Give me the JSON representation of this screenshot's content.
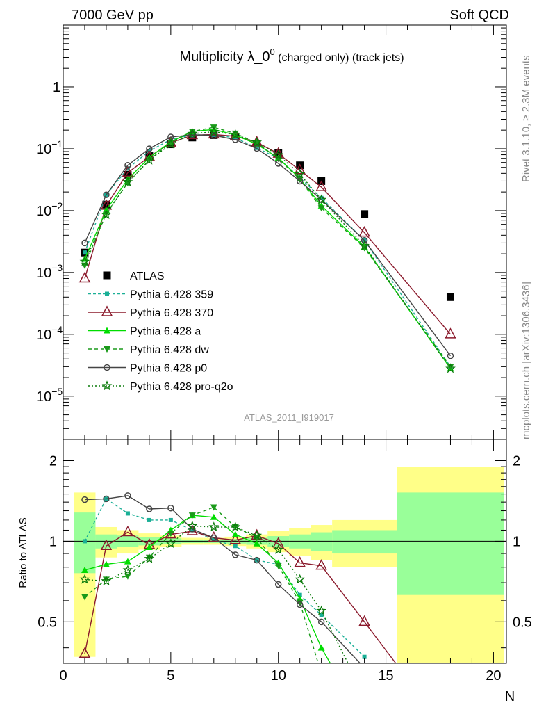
{
  "header": {
    "left": "7000 GeV pp",
    "right": "Soft QCD"
  },
  "side": {
    "rivet": "Rivet 3.1.10, ≥ 2.3M events",
    "mcplots": "mcplots.cern.ch [arXiv:1306.3436]"
  },
  "chart_data": [
    {
      "type": "scatter",
      "title": "Multiplicity λ_0⁰ (charged only) (track jets)",
      "title_main": "Multiplicity λ_0",
      "title_sup": "0",
      "title_paren": " (charged only) (track jets)",
      "watermark": "ATLAS_2011_I919017",
      "yscale": "log",
      "xlim": [
        0,
        20.6
      ],
      "ylim": [
        2e-06,
        10
      ],
      "ytick_labels": [
        {
          "value": 1,
          "base": "1",
          "exp": ""
        },
        {
          "value": 0.1,
          "base": "10",
          "exp": "−1"
        },
        {
          "value": 0.01,
          "base": "10",
          "exp": "−2"
        },
        {
          "value": 0.001,
          "base": "10",
          "exp": "−3"
        },
        {
          "value": 0.0001,
          "base": "10",
          "exp": "−4"
        },
        {
          "value": 1e-05,
          "base": "10",
          "exp": "−5"
        }
      ],
      "legend_position": "bottom-left",
      "series": [
        {
          "name": "ATLAS",
          "style": "data",
          "color": "#000000",
          "marker": "square",
          "dash": "",
          "x": [
            1,
            2,
            3,
            4,
            5,
            6,
            7,
            8,
            9,
            10,
            11,
            12,
            14,
            18
          ],
          "y": [
            0.0021,
            0.0125,
            0.038,
            0.076,
            0.118,
            0.152,
            0.166,
            0.157,
            0.121,
            0.085,
            0.054,
            0.03,
            0.0088,
            0.0004
          ]
        },
        {
          "name": "Pythia 6.428 359",
          "color": "#1aaf96",
          "marker": "smallsquare",
          "dash": "4,3",
          "x": [
            1,
            2,
            3,
            4,
            5,
            6,
            7,
            8,
            9,
            10,
            11,
            12,
            14,
            18
          ],
          "y": [
            0.0021,
            0.018,
            0.048,
            0.092,
            0.141,
            0.168,
            0.168,
            0.15,
            0.103,
            0.07,
            0.034,
            0.016,
            0.0033,
            3e-05
          ]
        },
        {
          "name": "Pythia 6.428 370",
          "color": "#8b1a2c",
          "marker": "triangle-open",
          "dash": "",
          "x": [
            1,
            2,
            3,
            4,
            5,
            6,
            7,
            8,
            9,
            10,
            11,
            12,
            14,
            18
          ],
          "y": [
            0.0008,
            0.012,
            0.041,
            0.074,
            0.125,
            0.166,
            0.17,
            0.159,
            0.127,
            0.083,
            0.045,
            0.024,
            0.0044,
            0.0001
          ]
        },
        {
          "name": "Pythia 6.428 a",
          "color": "#00dd00",
          "marker": "triangle",
          "dash": "",
          "x": [
            1,
            2,
            3,
            4,
            5,
            6,
            7,
            8,
            9,
            10,
            11,
            12,
            14,
            18
          ],
          "y": [
            0.00165,
            0.0102,
            0.032,
            0.072,
            0.13,
            0.19,
            0.205,
            0.167,
            0.118,
            0.071,
            0.033,
            0.012,
            0.0026,
            2.8e-05
          ]
        },
        {
          "name": "Pythia 6.428 dw",
          "color": "#1a9a1a",
          "marker": "triangle-down",
          "dash": "5,4",
          "x": [
            1,
            2,
            3,
            4,
            5,
            6,
            7,
            8,
            9,
            10,
            11,
            12,
            14,
            18
          ],
          "y": [
            0.0013,
            0.009,
            0.028,
            0.066,
            0.126,
            0.19,
            0.222,
            0.177,
            0.125,
            0.069,
            0.032,
            0.011,
            0.0025,
            3e-05
          ]
        },
        {
          "name": "Pythia 6.428 p0",
          "color": "#444444",
          "marker": "circle-open",
          "dash": "",
          "x": [
            1,
            2,
            3,
            4,
            5,
            6,
            7,
            8,
            9,
            10,
            11,
            12,
            14,
            18
          ],
          "y": [
            0.003,
            0.018,
            0.054,
            0.1,
            0.155,
            0.168,
            0.165,
            0.14,
            0.101,
            0.058,
            0.03,
            0.015,
            0.0033,
            4.5e-05
          ]
        },
        {
          "name": "Pythia 6.428 pro-q2o",
          "color": "#0a7a0a",
          "marker": "star",
          "dash": "2,3",
          "x": [
            1,
            2,
            3,
            4,
            5,
            6,
            7,
            8,
            9,
            10,
            11,
            12,
            14,
            18
          ],
          "y": [
            0.0015,
            0.0086,
            0.029,
            0.065,
            0.119,
            0.175,
            0.188,
            0.17,
            0.127,
            0.079,
            0.039,
            0.015,
            0.0027,
            2.8e-05
          ]
        }
      ]
    },
    {
      "type": "scatter",
      "ylabel": "Ratio to ATLAS",
      "xlabel": "N",
      "yscale": "log",
      "xlim": [
        0,
        20.6
      ],
      "ylim": [
        0.35,
        2.4
      ],
      "yticks": [
        0.5,
        1,
        2
      ],
      "xticks": [
        0,
        5,
        10,
        15,
        20
      ],
      "reference_line": 1,
      "bands": [
        {
          "x0": 0.5,
          "x1": 1.5,
          "yellow": [
            0.37,
            1.52
          ],
          "green": [
            0.76,
            1.28
          ]
        },
        {
          "x0": 1.5,
          "x1": 2.5,
          "yellow": [
            0.87,
            1.13
          ],
          "green": [
            0.94,
            1.06
          ]
        },
        {
          "x0": 2.5,
          "x1": 3.5,
          "yellow": [
            0.9,
            1.1
          ],
          "green": [
            0.95,
            1.05
          ]
        },
        {
          "x0": 3.5,
          "x1": 4.5,
          "yellow": [
            0.93,
            1.07
          ],
          "green": [
            0.965,
            1.035
          ]
        },
        {
          "x0": 4.5,
          "x1": 5.5,
          "yellow": [
            0.95,
            1.05
          ],
          "green": [
            0.975,
            1.025
          ]
        },
        {
          "x0": 5.5,
          "x1": 6.5,
          "yellow": [
            0.97,
            1.03
          ],
          "green": [
            0.985,
            1.015
          ]
        },
        {
          "x0": 6.5,
          "x1": 7.5,
          "yellow": [
            0.97,
            1.03
          ],
          "green": [
            0.985,
            1.015
          ]
        },
        {
          "x0": 7.5,
          "x1": 8.5,
          "yellow": [
            0.96,
            1.04
          ],
          "green": [
            0.98,
            1.02
          ]
        },
        {
          "x0": 8.5,
          "x1": 9.5,
          "yellow": [
            0.94,
            1.06
          ],
          "green": [
            0.97,
            1.03
          ]
        },
        {
          "x0": 9.5,
          "x1": 10.5,
          "yellow": [
            0.91,
            1.09
          ],
          "green": [
            0.955,
            1.045
          ]
        },
        {
          "x0": 10.5,
          "x1": 11.5,
          "yellow": [
            0.88,
            1.12
          ],
          "green": [
            0.94,
            1.06
          ]
        },
        {
          "x0": 11.5,
          "x1": 12.5,
          "yellow": [
            0.85,
            1.15
          ],
          "green": [
            0.92,
            1.08
          ]
        },
        {
          "x0": 12.5,
          "x1": 15.5,
          "yellow": [
            0.8,
            1.2
          ],
          "green": [
            0.9,
            1.1
          ]
        },
        {
          "x0": 15.5,
          "x1": 20.5,
          "yellow": [
            0.35,
            1.9
          ],
          "green": [
            0.63,
            1.52
          ]
        }
      ],
      "series": [
        {
          "name": "Pythia 6.428 359",
          "color": "#1aaf96",
          "marker": "smallsquare",
          "dash": "4,3",
          "x": [
            1,
            2,
            3,
            4,
            5,
            6,
            7,
            8,
            9,
            10,
            11,
            12,
            14
          ],
          "y": [
            1.0,
            1.44,
            1.27,
            1.2,
            1.2,
            1.1,
            1.01,
            0.96,
            0.85,
            0.82,
            0.63,
            0.53,
            0.37
          ]
        },
        {
          "name": "Pythia 6.428 370",
          "color": "#8b1a2c",
          "marker": "triangle-open",
          "dash": "",
          "x": [
            1,
            2,
            3,
            4,
            5,
            6,
            7,
            8,
            9,
            10,
            11,
            12,
            14,
            15.7
          ],
          "y": [
            0.38,
            0.96,
            1.08,
            0.97,
            1.06,
            1.09,
            1.03,
            1.01,
            1.05,
            0.98,
            0.83,
            0.81,
            0.5,
            0.33
          ]
        },
        {
          "name": "Pythia 6.428 a",
          "color": "#00dd00",
          "marker": "triangle",
          "dash": "",
          "x": [
            1,
            2,
            3,
            4,
            5,
            6,
            7,
            8,
            9,
            10,
            11,
            12,
            12.6
          ],
          "y": [
            0.78,
            0.82,
            0.84,
            0.95,
            1.1,
            1.25,
            1.23,
            1.06,
            0.98,
            0.83,
            0.61,
            0.4,
            0.33
          ]
        },
        {
          "name": "Pythia 6.428 dw",
          "color": "#1a9a1a",
          "marker": "triangle-down",
          "dash": "5,4",
          "x": [
            1,
            2,
            3,
            4,
            5,
            6,
            7,
            8,
            9,
            10,
            11,
            11.9
          ],
          "y": [
            0.62,
            0.72,
            0.74,
            0.87,
            1.07,
            1.25,
            1.34,
            1.13,
            1.03,
            0.81,
            0.59,
            0.34
          ]
        },
        {
          "name": "Pythia 6.428 p0",
          "color": "#444444",
          "marker": "circle-open",
          "dash": "",
          "x": [
            1,
            2,
            3,
            4,
            5,
            6,
            7,
            8,
            9,
            10,
            11,
            12,
            13.8
          ],
          "y": [
            1.43,
            1.44,
            1.48,
            1.32,
            1.33,
            1.11,
            1.03,
            0.89,
            0.85,
            0.69,
            0.58,
            0.5,
            0.35
          ]
        },
        {
          "name": "Pythia 6.428 pro-q2o",
          "color": "#0a7a0a",
          "marker": "star",
          "dash": "2,3",
          "x": [
            1,
            2,
            3,
            4,
            5,
            6,
            7,
            8,
            9,
            10,
            11,
            12,
            13.4
          ],
          "y": [
            0.72,
            0.71,
            0.78,
            0.86,
            0.98,
            1.14,
            1.13,
            1.13,
            1.05,
            0.93,
            0.72,
            0.55,
            0.33
          ]
        }
      ]
    }
  ]
}
